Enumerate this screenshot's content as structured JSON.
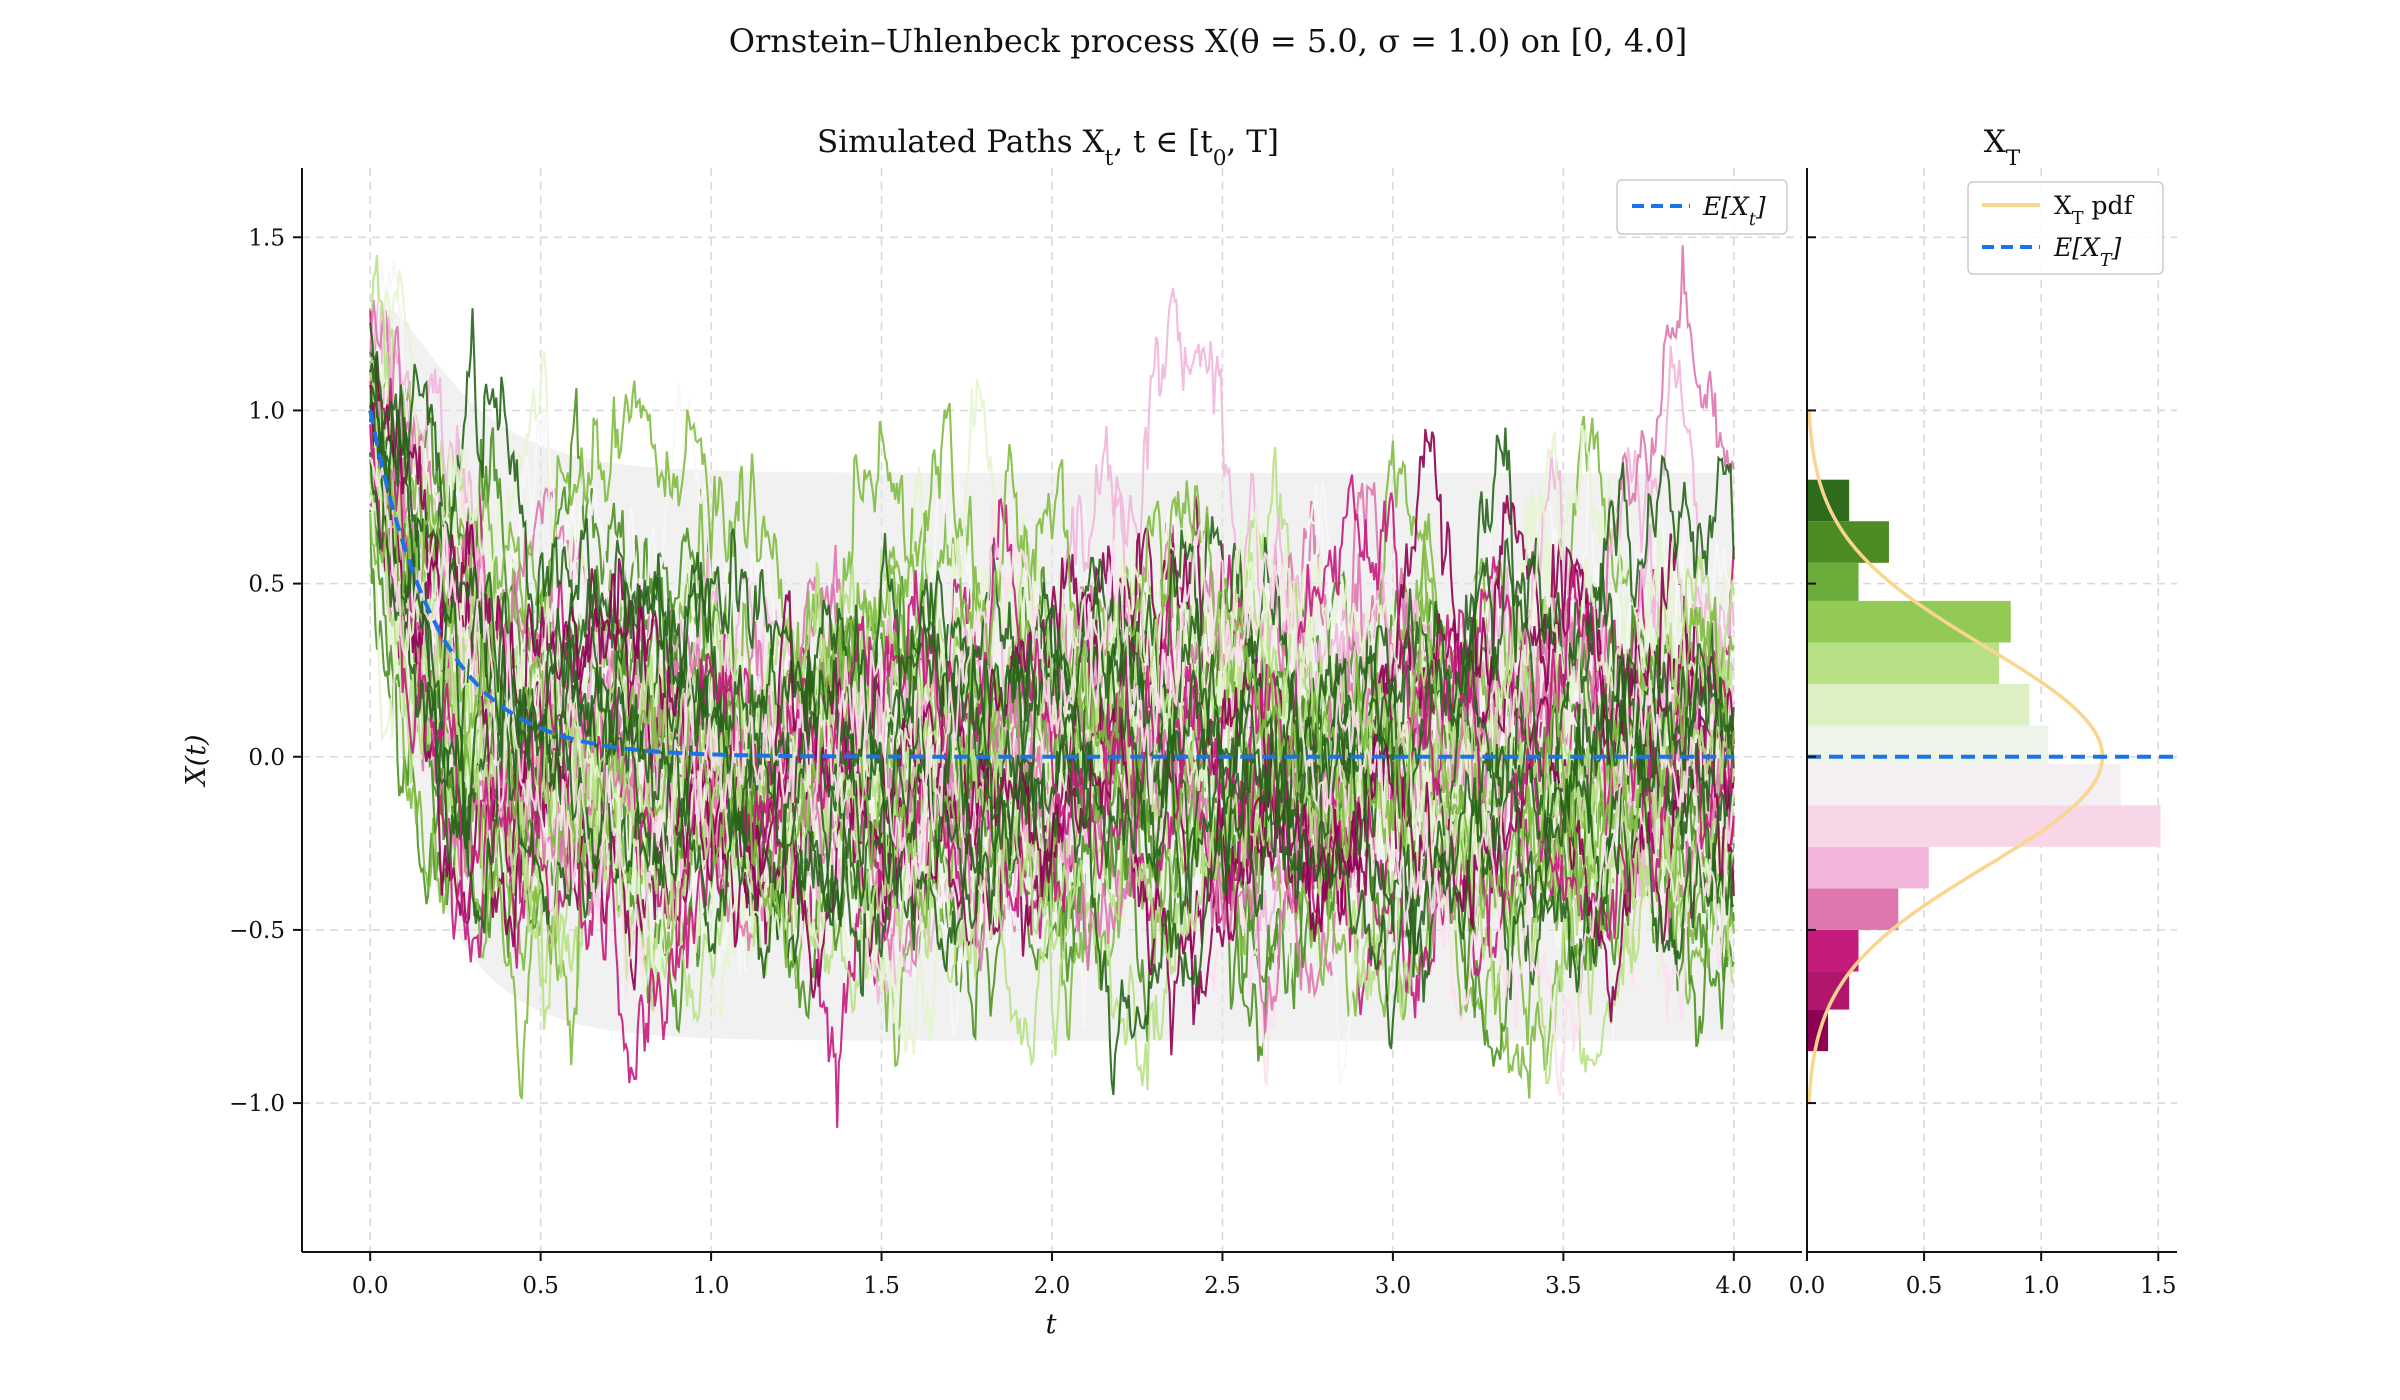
{
  "chart_data": [
    {
      "type": "line",
      "suptitle": "Ornstein–Uhlenbeck process X(θ = 5.0, σ = 1.0) on [0, 4.0]",
      "title": "Simulated Paths X_t, t ∈ [t_0, T]",
      "xlabel": "t",
      "ylabel": "X(t)",
      "xlim": [
        -0.2,
        4.2
      ],
      "ylim": [
        -1.43,
        1.7
      ],
      "xticks": [
        "0.0",
        "0.5",
        "1.0",
        "1.5",
        "2.0",
        "2.5",
        "3.0",
        "3.5",
        "4.0"
      ],
      "yticks": [
        "−1.0",
        "−0.5",
        "0.0",
        "0.5",
        "1.0",
        "1.5"
      ],
      "grid": true,
      "legend": {
        "position": "top-right",
        "entries": [
          "E[X_t]"
        ]
      },
      "params": {
        "theta": 5.0,
        "sigma": 1.0,
        "x0": 1.0,
        "t0": 0.0,
        "T": 4.0
      },
      "n_paths": 50,
      "mean_curve": {
        "name": "E[X_t]",
        "color": "#1a73e8",
        "style": "dashed",
        "x": [
          0.0,
          0.1,
          0.2,
          0.3,
          0.4,
          0.5,
          0.75,
          1.0,
          2.0,
          3.0,
          4.0
        ],
        "y": [
          1.0,
          0.607,
          0.368,
          0.223,
          0.135,
          0.082,
          0.024,
          0.007,
          0.0,
          0.0,
          0.0
        ]
      },
      "envelope": {
        "upper": 0.82,
        "lower": -0.82,
        "color": "#e6e6e6"
      },
      "colormap": [
        "#8e0152",
        "#c51b7d",
        "#de77ae",
        "#f1b6da",
        "#fde0ef",
        "#f7f7f7",
        "#e6f5d0",
        "#b8e186",
        "#7fbc41",
        "#4d9221",
        "#276419"
      ]
    },
    {
      "type": "bar",
      "orientation": "horizontal",
      "title": "X_T",
      "xlim": [
        0,
        1.58
      ],
      "xticks": [
        "0.0",
        "0.5",
        "1.0",
        "1.5"
      ],
      "grid": true,
      "legend": {
        "position": "top-right",
        "entries": [
          "X_T pdf",
          "E[X_T]"
        ]
      },
      "bins": [
        {
          "low": -0.85,
          "high": -0.73,
          "density": 0.09,
          "color": "#8e0152"
        },
        {
          "low": -0.73,
          "high": -0.62,
          "density": 0.18,
          "color": "#b0166c"
        },
        {
          "low": -0.62,
          "high": -0.5,
          "density": 0.22,
          "color": "#c51b7d"
        },
        {
          "low": -0.5,
          "high": -0.38,
          "density": 0.39,
          "color": "#de77ae"
        },
        {
          "low": -0.38,
          "high": -0.26,
          "density": 0.52,
          "color": "#f1b6da"
        },
        {
          "low": -0.26,
          "high": -0.14,
          "density": 1.51,
          "color": "#f7d6e8"
        },
        {
          "low": -0.14,
          "high": -0.02,
          "density": 1.34,
          "color": "#f4eff3"
        },
        {
          "low": -0.02,
          "high": 0.09,
          "density": 1.03,
          "color": "#eef4e8"
        },
        {
          "low": 0.09,
          "high": 0.21,
          "density": 0.95,
          "color": "#dcf0c4"
        },
        {
          "low": 0.21,
          "high": 0.33,
          "density": 0.82,
          "color": "#b8e186"
        },
        {
          "low": 0.33,
          "high": 0.45,
          "density": 0.87,
          "color": "#93c955"
        },
        {
          "low": 0.45,
          "high": 0.56,
          "density": 0.22,
          "color": "#6aab39"
        },
        {
          "low": 0.56,
          "high": 0.68,
          "density": 0.35,
          "color": "#4d8c22"
        },
        {
          "low": 0.68,
          "high": 0.8,
          "density": 0.18,
          "color": "#2f6b1c"
        }
      ],
      "pdf": {
        "name": "X_T pdf",
        "color": "#f9d58f",
        "mean": 0.0,
        "std": 0.3162
      },
      "mean_line": {
        "name": "E[X_T]",
        "value": 0.0,
        "color": "#1a73e8"
      }
    }
  ]
}
